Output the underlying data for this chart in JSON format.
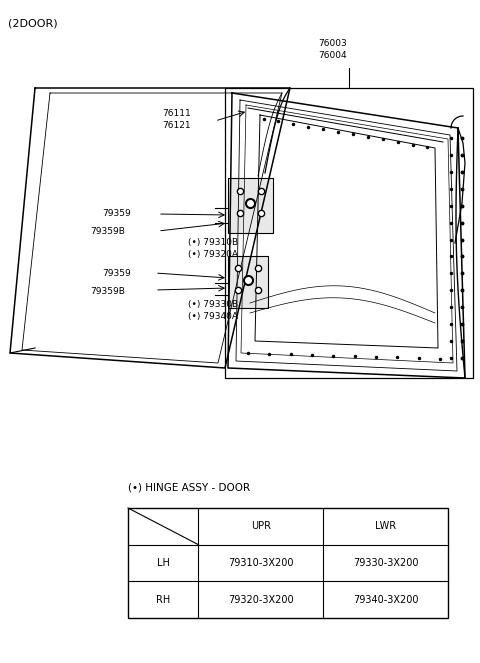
{
  "title": "(2DOOR)",
  "bg_color": "#ffffff",
  "table_title": "(•) HINGE ASSY - DOOR",
  "table_header": [
    "",
    "UPR",
    "LWR"
  ],
  "table_rows": [
    [
      "LH",
      "79310-3X200",
      "79330-3X200"
    ],
    [
      "RH",
      "79320-3X200",
      "79340-3X200"
    ]
  ],
  "font_size_label": 6.5,
  "font_size_title": 8.0,
  "font_size_table": 7.0,
  "label_76003": "76003",
  "label_76004": "76004",
  "label_76111": "76111",
  "label_76121": "76121",
  "label_79359_u": "79359",
  "label_79359B_u": "79359B",
  "label_79310B": "(•) 79310B",
  "label_79320A": "(•) 79320A",
  "label_79359_l": "79359",
  "label_79359B_l": "79359B",
  "label_79330B": "(•) 79330B",
  "label_79340A": "(•) 79340A"
}
